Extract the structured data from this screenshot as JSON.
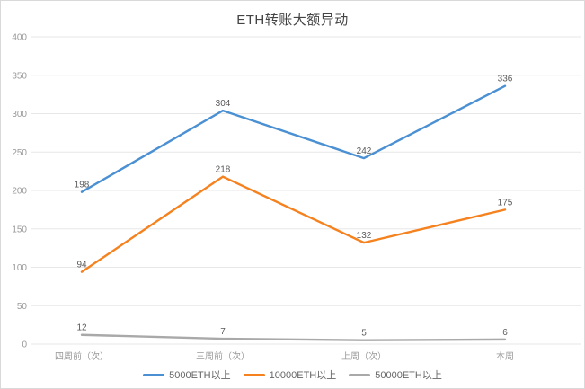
{
  "chart_data": {
    "type": "line",
    "title": "ETH转账大额异动",
    "categories": [
      "四周前（次）",
      "三周前（次）",
      "上周（次）",
      "本周"
    ],
    "series": [
      {
        "name": "5000ETH以上",
        "color": "#4A90D2",
        "values": [
          198,
          304,
          242,
          336
        ]
      },
      {
        "name": "10000ETH以上",
        "color": "#F5821F",
        "values": [
          94,
          218,
          132,
          175
        ]
      },
      {
        "name": "50000ETH以上",
        "color": "#A9A9A9",
        "values": [
          12,
          7,
          5,
          6
        ]
      }
    ],
    "xlabel": "",
    "ylabel": "",
    "ylim": [
      0,
      400
    ],
    "ytick_step": 50,
    "grid": true,
    "legend_position": "bottom",
    "colors": {
      "grid": "#E7E7E7",
      "axis_text": "#999999",
      "label_text": "#595959",
      "title_text": "#444444",
      "border": "#D9D9D9",
      "background": "#FFFFFF"
    }
  }
}
